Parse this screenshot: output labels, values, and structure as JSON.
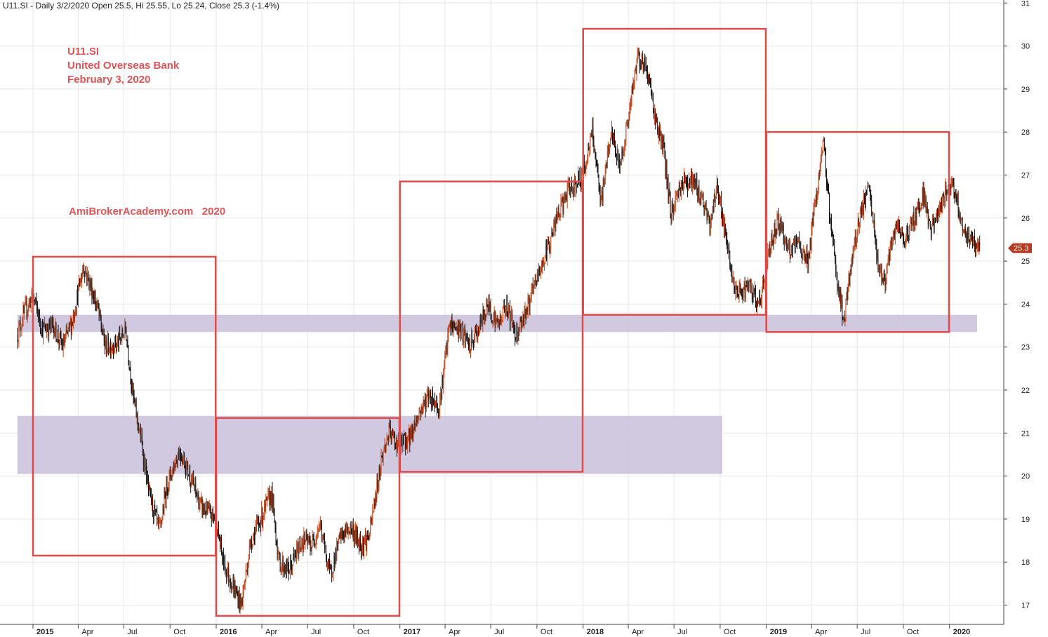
{
  "header": {
    "text": "U11.SI - Daily 3/2/2020 Open 25.5, Hi 25.55, Lo 25.24, Close 25.3 (-1.4%)"
  },
  "annotations": {
    "line1": "U11.SI",
    "line2": "United Overseas Bank",
    "line3": "February 3, 2020",
    "watermark": "AmiBrokerAcademy.com   2020",
    "color": "#e05555"
  },
  "colors": {
    "box": "#dd4b4b",
    "zone": "#cfc6de",
    "candle_up": "#c0451a",
    "candle_down": "#111111",
    "grid": "#e6e6e6",
    "last_price_bg": "#b5391e"
  },
  "chart_data": {
    "type": "candlestick",
    "title": "",
    "ylim": [
      16.6,
      31.2
    ],
    "y_ticks": [
      "17",
      "18",
      "19",
      "20",
      "21",
      "22",
      "23",
      "24",
      "25",
      "26",
      "27",
      "28",
      "29",
      "30",
      "31"
    ],
    "x_range": [
      "2014-12-01",
      "2020-03-20"
    ],
    "x_ticks": [
      {
        "date": "2015-01-01",
        "label": "2015",
        "year": true
      },
      {
        "date": "2015-04-01",
        "label": "Apr",
        "year": false
      },
      {
        "date": "2015-07-01",
        "label": "Jul",
        "year": false
      },
      {
        "date": "2015-10-01",
        "label": "Oct",
        "year": false
      },
      {
        "date": "2016-01-01",
        "label": "2016",
        "year": true
      },
      {
        "date": "2016-04-01",
        "label": "Apr",
        "year": false
      },
      {
        "date": "2016-07-01",
        "label": "Jul",
        "year": false
      },
      {
        "date": "2016-10-01",
        "label": "Oct",
        "year": false
      },
      {
        "date": "2017-01-01",
        "label": "2017",
        "year": true
      },
      {
        "date": "2017-04-01",
        "label": "Apr",
        "year": false
      },
      {
        "date": "2017-07-01",
        "label": "Jul",
        "year": false
      },
      {
        "date": "2017-10-01",
        "label": "Oct",
        "year": false
      },
      {
        "date": "2018-01-01",
        "label": "2018",
        "year": true
      },
      {
        "date": "2018-04-01",
        "label": "Apr",
        "year": false
      },
      {
        "date": "2018-07-01",
        "label": "Jul",
        "year": false
      },
      {
        "date": "2018-10-01",
        "label": "Oct",
        "year": false
      },
      {
        "date": "2019-01-01",
        "label": "2019",
        "year": true
      },
      {
        "date": "2019-04-01",
        "label": "Apr",
        "year": false
      },
      {
        "date": "2019-07-01",
        "label": "Jul",
        "year": false
      },
      {
        "date": "2019-10-01",
        "label": "Oct",
        "year": false
      },
      {
        "date": "2020-01-01",
        "label": "2020",
        "year": true
      }
    ],
    "price_path": [
      [
        "2014-12-01",
        23.3
      ],
      [
        "2014-12-15",
        23.8
      ],
      [
        "2015-01-01",
        24.2
      ],
      [
        "2015-01-20",
        23.4
      ],
      [
        "2015-02-10",
        23.5
      ],
      [
        "2015-03-01",
        23.0
      ],
      [
        "2015-03-20",
        23.6
      ],
      [
        "2015-04-12",
        24.9
      ],
      [
        "2015-05-10",
        23.9
      ],
      [
        "2015-05-25",
        23.0
      ],
      [
        "2015-06-20",
        23.1
      ],
      [
        "2015-07-05",
        23.4
      ],
      [
        "2015-07-20",
        21.8
      ],
      [
        "2015-08-05",
        20.8
      ],
      [
        "2015-08-20",
        19.6
      ],
      [
        "2015-09-10",
        18.7
      ],
      [
        "2015-09-25",
        19.8
      ],
      [
        "2015-10-20",
        20.6
      ],
      [
        "2015-11-10",
        20.0
      ],
      [
        "2015-12-01",
        19.3
      ],
      [
        "2015-12-31",
        19.0
      ],
      [
        "2016-01-15",
        18.0
      ],
      [
        "2016-02-05",
        17.4
      ],
      [
        "2016-02-20",
        17.0
      ],
      [
        "2016-03-10",
        18.5
      ],
      [
        "2016-03-30",
        19.0
      ],
      [
        "2016-04-20",
        19.6
      ],
      [
        "2016-05-05",
        18.0
      ],
      [
        "2016-05-25",
        17.8
      ],
      [
        "2016-06-20",
        18.5
      ],
      [
        "2016-07-10",
        18.4
      ],
      [
        "2016-07-25",
        18.9
      ],
      [
        "2016-08-15",
        17.7
      ],
      [
        "2016-09-05",
        18.6
      ],
      [
        "2016-09-25",
        18.8
      ],
      [
        "2016-10-15",
        18.4
      ],
      [
        "2016-11-01",
        18.6
      ],
      [
        "2016-11-25",
        20.4
      ],
      [
        "2016-12-10",
        21.0
      ],
      [
        "2016-12-31",
        20.7
      ],
      [
        "2017-01-20",
        20.9
      ],
      [
        "2017-02-10",
        21.5
      ],
      [
        "2017-02-28",
        21.9
      ],
      [
        "2017-03-20",
        21.6
      ],
      [
        "2017-04-10",
        23.5
      ],
      [
        "2017-05-01",
        23.4
      ],
      [
        "2017-05-20",
        23.0
      ],
      [
        "2017-06-10",
        23.5
      ],
      [
        "2017-06-25",
        24.0
      ],
      [
        "2017-07-15",
        23.5
      ],
      [
        "2017-08-01",
        24.0
      ],
      [
        "2017-08-20",
        23.3
      ],
      [
        "2017-09-15",
        24.0
      ],
      [
        "2017-10-01",
        24.6
      ],
      [
        "2017-10-20",
        25.2
      ],
      [
        "2017-11-10",
        26.0
      ],
      [
        "2017-12-01",
        26.6
      ],
      [
        "2017-12-31",
        27.0
      ],
      [
        "2018-01-20",
        28.0
      ],
      [
        "2018-02-05",
        26.3
      ],
      [
        "2018-02-25",
        28.0
      ],
      [
        "2018-03-15",
        27.2
      ],
      [
        "2018-04-01",
        28.3
      ],
      [
        "2018-04-20",
        29.8
      ],
      [
        "2018-05-10",
        29.4
      ],
      [
        "2018-05-25",
        28.3
      ],
      [
        "2018-06-10",
        27.6
      ],
      [
        "2018-06-25",
        26.1
      ],
      [
        "2018-07-15",
        26.8
      ],
      [
        "2018-08-05",
        26.9
      ],
      [
        "2018-08-25",
        26.5
      ],
      [
        "2018-09-10",
        25.8
      ],
      [
        "2018-09-25",
        26.8
      ],
      [
        "2018-10-15",
        25.3
      ],
      [
        "2018-11-01",
        24.2
      ],
      [
        "2018-11-25",
        24.4
      ],
      [
        "2018-12-20",
        24.0
      ],
      [
        "2019-01-05",
        25.2
      ],
      [
        "2019-01-25",
        26.0
      ],
      [
        "2019-02-15",
        25.2
      ],
      [
        "2019-03-05",
        25.4
      ],
      [
        "2019-03-25",
        25.0
      ],
      [
        "2019-04-10",
        26.5
      ],
      [
        "2019-04-25",
        27.7
      ],
      [
        "2019-05-10",
        25.8
      ],
      [
        "2019-05-25",
        24.3
      ],
      [
        "2019-06-05",
        23.6
      ],
      [
        "2019-06-20",
        25.0
      ],
      [
        "2019-07-05",
        26.0
      ],
      [
        "2019-07-25",
        26.7
      ],
      [
        "2019-08-10",
        25.0
      ],
      [
        "2019-08-25",
        24.5
      ],
      [
        "2019-09-15",
        25.8
      ],
      [
        "2019-10-01",
        25.5
      ],
      [
        "2019-10-20",
        25.9
      ],
      [
        "2019-11-10",
        26.6
      ],
      [
        "2019-11-25",
        25.7
      ],
      [
        "2019-12-15",
        26.3
      ],
      [
        "2020-01-05",
        26.9
      ],
      [
        "2020-01-20",
        26.2
      ],
      [
        "2020-02-01",
        25.6
      ],
      [
        "2020-02-10",
        25.5
      ],
      [
        "2020-03-02",
        25.3
      ]
    ],
    "boxes": [
      {
        "start": "2015-01-01",
        "end": "2015-12-31",
        "low": 18.15,
        "high": 25.1
      },
      {
        "start": "2016-01-01",
        "end": "2016-12-31",
        "low": 16.75,
        "high": 21.35
      },
      {
        "start": "2017-01-01",
        "end": "2017-12-31",
        "low": 20.1,
        "high": 26.85
      },
      {
        "start": "2018-01-01",
        "end": "2018-12-31",
        "low": 23.75,
        "high": 30.4
      },
      {
        "start": "2019-01-01",
        "end": "2019-12-31",
        "low": 23.35,
        "high": 28.0
      }
    ],
    "zones": [
      {
        "start": "2014-12-01",
        "end": "2020-02-25",
        "low": 23.35,
        "high": 23.75
      },
      {
        "start": "2014-12-01",
        "end": "2018-10-05",
        "low": 20.05,
        "high": 21.4
      }
    ],
    "last_price": {
      "value": 25.3,
      "label": "25.3"
    }
  }
}
